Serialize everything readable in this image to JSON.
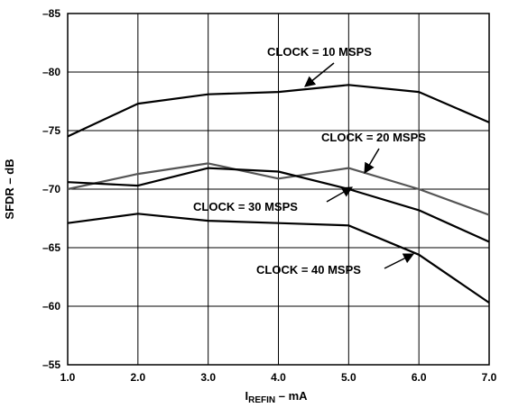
{
  "chart_data": {
    "type": "line",
    "xlabel_main": "I",
    "xlabel_sub": "REFIN",
    "xlabel_suffix": " – mA",
    "ylabel": "SFDR – dB",
    "xlim": [
      1.0,
      7.0
    ],
    "ylim": [
      -55,
      -85
    ],
    "x_ticks": [
      "1.0",
      "2.0",
      "3.0",
      "4.0",
      "5.0",
      "6.0",
      "7.0"
    ],
    "y_ticks": [
      "–55",
      "–60",
      "–65",
      "–70",
      "–75",
      "–80",
      "–85"
    ],
    "grid": true,
    "x": [
      1.0,
      2.0,
      3.0,
      4.0,
      5.0,
      6.0,
      7.0
    ],
    "series": [
      {
        "label": "CLOCK = 10 MSPS",
        "color": "#000000",
        "values": [
          -74.5,
          -77.3,
          -78.1,
          -78.3,
          -78.9,
          -78.3,
          -75.7
        ]
      },
      {
        "label": "CLOCK = 20 MSPS",
        "color": "#555555",
        "values": [
          -70.0,
          -71.3,
          -72.2,
          -70.9,
          -71.8,
          -70.0,
          -67.8
        ]
      },
      {
        "label": "CLOCK = 30 MSPS",
        "color": "#000000",
        "values": [
          -70.6,
          -70.3,
          -71.8,
          -71.5,
          -70.0,
          -68.2,
          -65.5
        ]
      },
      {
        "label": "CLOCK = 40 MSPS",
        "color": "#000000",
        "values": [
          -67.1,
          -67.9,
          -67.3,
          -67.1,
          -66.9,
          -64.4,
          -60.3
        ]
      }
    ]
  }
}
